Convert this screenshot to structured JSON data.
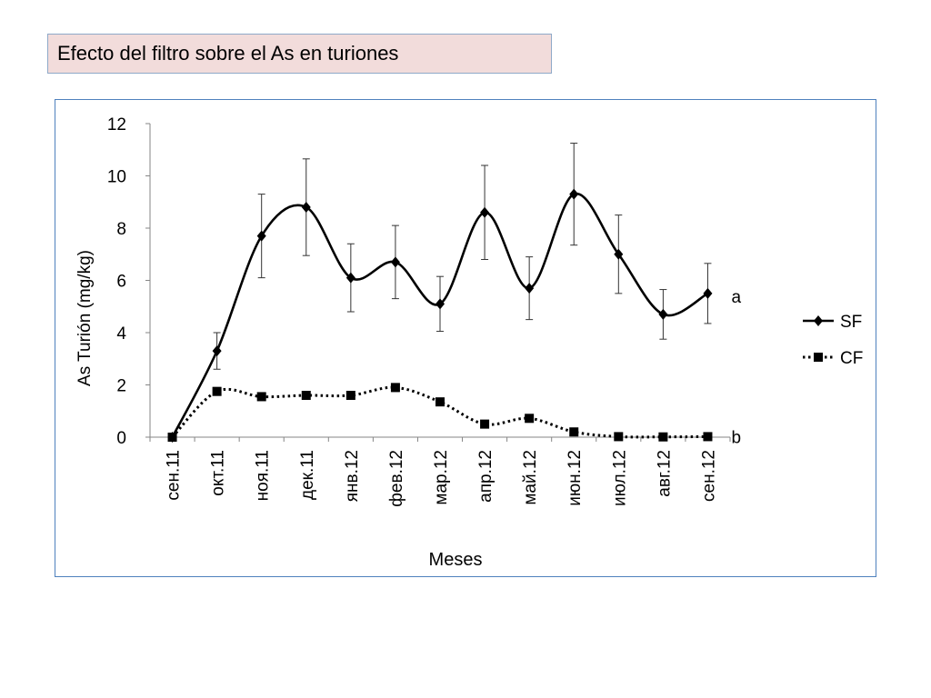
{
  "slide": {
    "title": "Efecto del filtro sobre el As en turiones"
  },
  "chart_data": {
    "type": "line",
    "categories": [
      "сен.11",
      "окт.11",
      "ноя.11",
      "дек.11",
      "янв.12",
      "фев.12",
      "мар.12",
      "апр.12",
      "май.12",
      "июн.12",
      "июл.12",
      "авг.12",
      "сен.12"
    ],
    "xlabel": "Meses",
    "ylabel": "As Turión (mg/kg)",
    "ylim": [
      0,
      12
    ],
    "yticks": [
      0,
      2,
      4,
      6,
      8,
      10,
      12
    ],
    "grid": false,
    "legend_position": "right",
    "series": [
      {
        "name": "SF",
        "values": [
          0,
          3.3,
          7.7,
          8.8,
          6.1,
          6.7,
          5.1,
          8.6,
          5.7,
          9.3,
          7.0,
          4.7,
          5.5
        ],
        "error": [
          0,
          0.7,
          1.6,
          1.85,
          1.3,
          1.4,
          1.05,
          1.8,
          1.2,
          1.95,
          1.5,
          0.95,
          1.15
        ],
        "line_style": "solid",
        "marker": "diamond",
        "color": "#000000",
        "annotation": "a"
      },
      {
        "name": "CF",
        "values": [
          0,
          1.75,
          1.55,
          1.6,
          1.6,
          1.9,
          1.35,
          0.5,
          0.72,
          0.2,
          0.02,
          0.01,
          0.02
        ],
        "error": [
          0,
          0.15,
          0.1,
          0.1,
          0.1,
          0.15,
          0.1,
          0.08,
          0.08,
          0.05,
          0.02,
          0.01,
          0.01
        ],
        "line_style": "dotted",
        "marker": "square",
        "color": "#000000",
        "annotation": "b"
      }
    ]
  }
}
